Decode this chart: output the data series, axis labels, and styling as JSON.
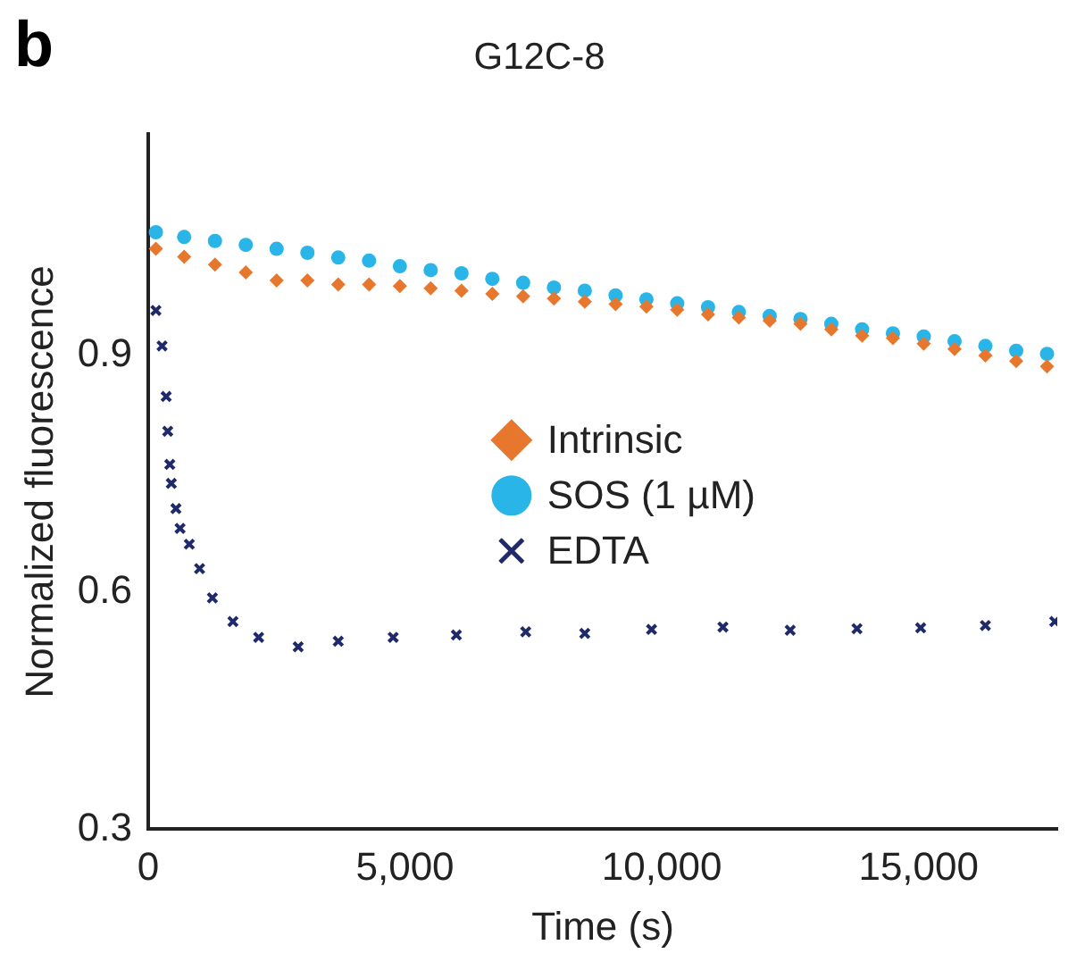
{
  "chart_data": {
    "type": "scatter",
    "title": "G12C-8",
    "xlabel": "Time (s)",
    "ylabel": "Normalized fluorescence",
    "annotations": [
      "b"
    ],
    "xlim": [
      0,
      17700
    ],
    "ylim": [
      0.3,
      1.18
    ],
    "xticks": [
      0,
      {
        "value": 5000,
        "label": "5,000"
      },
      {
        "value": 10000,
        "label": "10,000"
      },
      {
        "value": 15000,
        "label": "15,000"
      }
    ],
    "yticks": [
      0.3,
      0.6,
      0.9
    ],
    "grid": false,
    "legend": "center",
    "series": [
      {
        "name": "Intrinsic",
        "color": "#e8772e",
        "marker": "diamond",
        "x": [
          150,
          700,
          1300,
          1900,
          2500,
          3100,
          3700,
          4300,
          4900,
          5500,
          6100,
          6700,
          7300,
          7900,
          8500,
          9100,
          9700,
          10300,
          10900,
          11500,
          12100,
          12700,
          13300,
          13900,
          14500,
          15100,
          15700,
          16300,
          16900,
          17500
        ],
        "values": [
          1.035,
          1.025,
          1.015,
          1.005,
          0.995,
          0.995,
          0.99,
          0.99,
          0.988,
          0.985,
          0.982,
          0.978,
          0.975,
          0.972,
          0.968,
          0.965,
          0.962,
          0.958,
          0.952,
          0.948,
          0.944,
          0.94,
          0.933,
          0.925,
          0.922,
          0.915,
          0.908,
          0.9,
          0.893,
          0.886
        ]
      },
      {
        "name": "SOS (1 µM)",
        "color": "#29b5e8",
        "marker": "circle",
        "x": [
          150,
          700,
          1300,
          1900,
          2500,
          3100,
          3700,
          4300,
          4900,
          5500,
          6100,
          6700,
          7300,
          7900,
          8500,
          9100,
          9700,
          10300,
          10900,
          11500,
          12100,
          12700,
          13300,
          13900,
          14500,
          15100,
          15700,
          16300,
          16900,
          17500
        ],
        "values": [
          1.056,
          1.05,
          1.045,
          1.04,
          1.035,
          1.03,
          1.024,
          1.02,
          1.013,
          1.008,
          1.004,
          0.997,
          0.992,
          0.986,
          0.982,
          0.976,
          0.971,
          0.966,
          0.961,
          0.955,
          0.95,
          0.946,
          0.94,
          0.933,
          0.928,
          0.924,
          0.918,
          0.912,
          0.906,
          0.902
        ]
      },
      {
        "name": "EDTA",
        "color": "#1f2a6b",
        "marker": "cross",
        "x": [
          150,
          270,
          350,
          380,
          420,
          450,
          540,
          620,
          800,
          1000,
          1250,
          1650,
          2150,
          2920,
          3700,
          4770,
          6000,
          7350,
          8500,
          9800,
          11190,
          12500,
          13800,
          15040,
          16300,
          17650
        ],
        "values": [
          0.957,
          0.912,
          0.848,
          0.804,
          0.762,
          0.738,
          0.706,
          0.681,
          0.661,
          0.63,
          0.593,
          0.563,
          0.543,
          0.531,
          0.538,
          0.543,
          0.546,
          0.55,
          0.548,
          0.553,
          0.556,
          0.552,
          0.554,
          0.555,
          0.558,
          0.563
        ]
      }
    ]
  }
}
